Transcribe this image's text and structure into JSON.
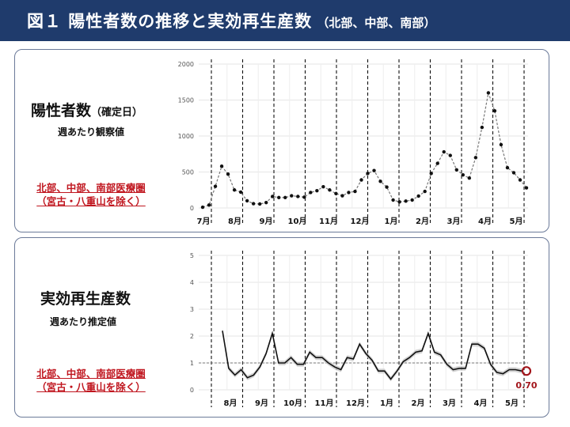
{
  "header": {
    "title": "図１ 陽性者数の推移と実効再生産数",
    "subtitle": "（北部、中部、南部）"
  },
  "panels": [
    {
      "title": "陽性者数",
      "title_note": "（確定日）",
      "subtitle": "週あたり観察値",
      "region_line1": "北部、中部、南部医療圏",
      "region_line2": "（宮古・八重山を除く）"
    },
    {
      "title": "実効再生産数",
      "subtitle": "週あたり推定値",
      "region_line1": "北部、中部、南部医療圏",
      "region_line2": "（宮古・八重山を除く）"
    }
  ],
  "chart_data": [
    {
      "type": "line",
      "title": "陽性者数（確定日）",
      "ylim": [
        0,
        2000
      ],
      "yticks": [
        0,
        500,
        1000,
        1500,
        2000
      ],
      "x_month_labels": [
        "7月",
        "8月",
        "9月",
        "10月",
        "11月",
        "12月",
        "1月",
        "2月",
        "3月",
        "4月",
        "5月"
      ],
      "series": [
        {
          "values": [
            10,
            40,
            300,
            580,
            470,
            250,
            220,
            100,
            60,
            55,
            75,
            160,
            145,
            145,
            170,
            160,
            150,
            215,
            240,
            295,
            250,
            200,
            170,
            215,
            230,
            390,
            480,
            520,
            370,
            290,
            110,
            85,
            95,
            110,
            165,
            230,
            480,
            620,
            780,
            730,
            530,
            460,
            415,
            700,
            1120,
            1600,
            1350,
            880,
            560,
            490,
            390,
            280
          ]
        }
      ],
      "grid": true
    },
    {
      "type": "line",
      "title": "実効再生産数",
      "ylim": [
        0,
        5
      ],
      "yticks": [
        0,
        1,
        2,
        3,
        4,
        5
      ],
      "reference_line": 1,
      "x_month_labels": [
        "8月",
        "9月",
        "10月",
        "11月",
        "12月",
        "1月",
        "2月",
        "3月",
        "4月",
        "5月"
      ],
      "series": [
        {
          "values": [
            2.2,
            0.8,
            0.55,
            0.75,
            0.45,
            0.55,
            0.85,
            1.35,
            2.1,
            1.0,
            1.0,
            1.2,
            0.95,
            0.95,
            1.4,
            1.2,
            1.2,
            1.0,
            0.85,
            0.75,
            1.2,
            1.15,
            1.7,
            1.35,
            1.1,
            0.7,
            0.7,
            0.4,
            0.7,
            1.05,
            1.2,
            1.4,
            1.45,
            2.1,
            1.4,
            1.3,
            0.95,
            0.75,
            0.8,
            0.8,
            1.7,
            1.7,
            1.55,
            0.95,
            0.65,
            0.6,
            0.75,
            0.75,
            0.7
          ]
        }
      ],
      "latest_value_label": "0.70",
      "grid": true
    }
  ]
}
